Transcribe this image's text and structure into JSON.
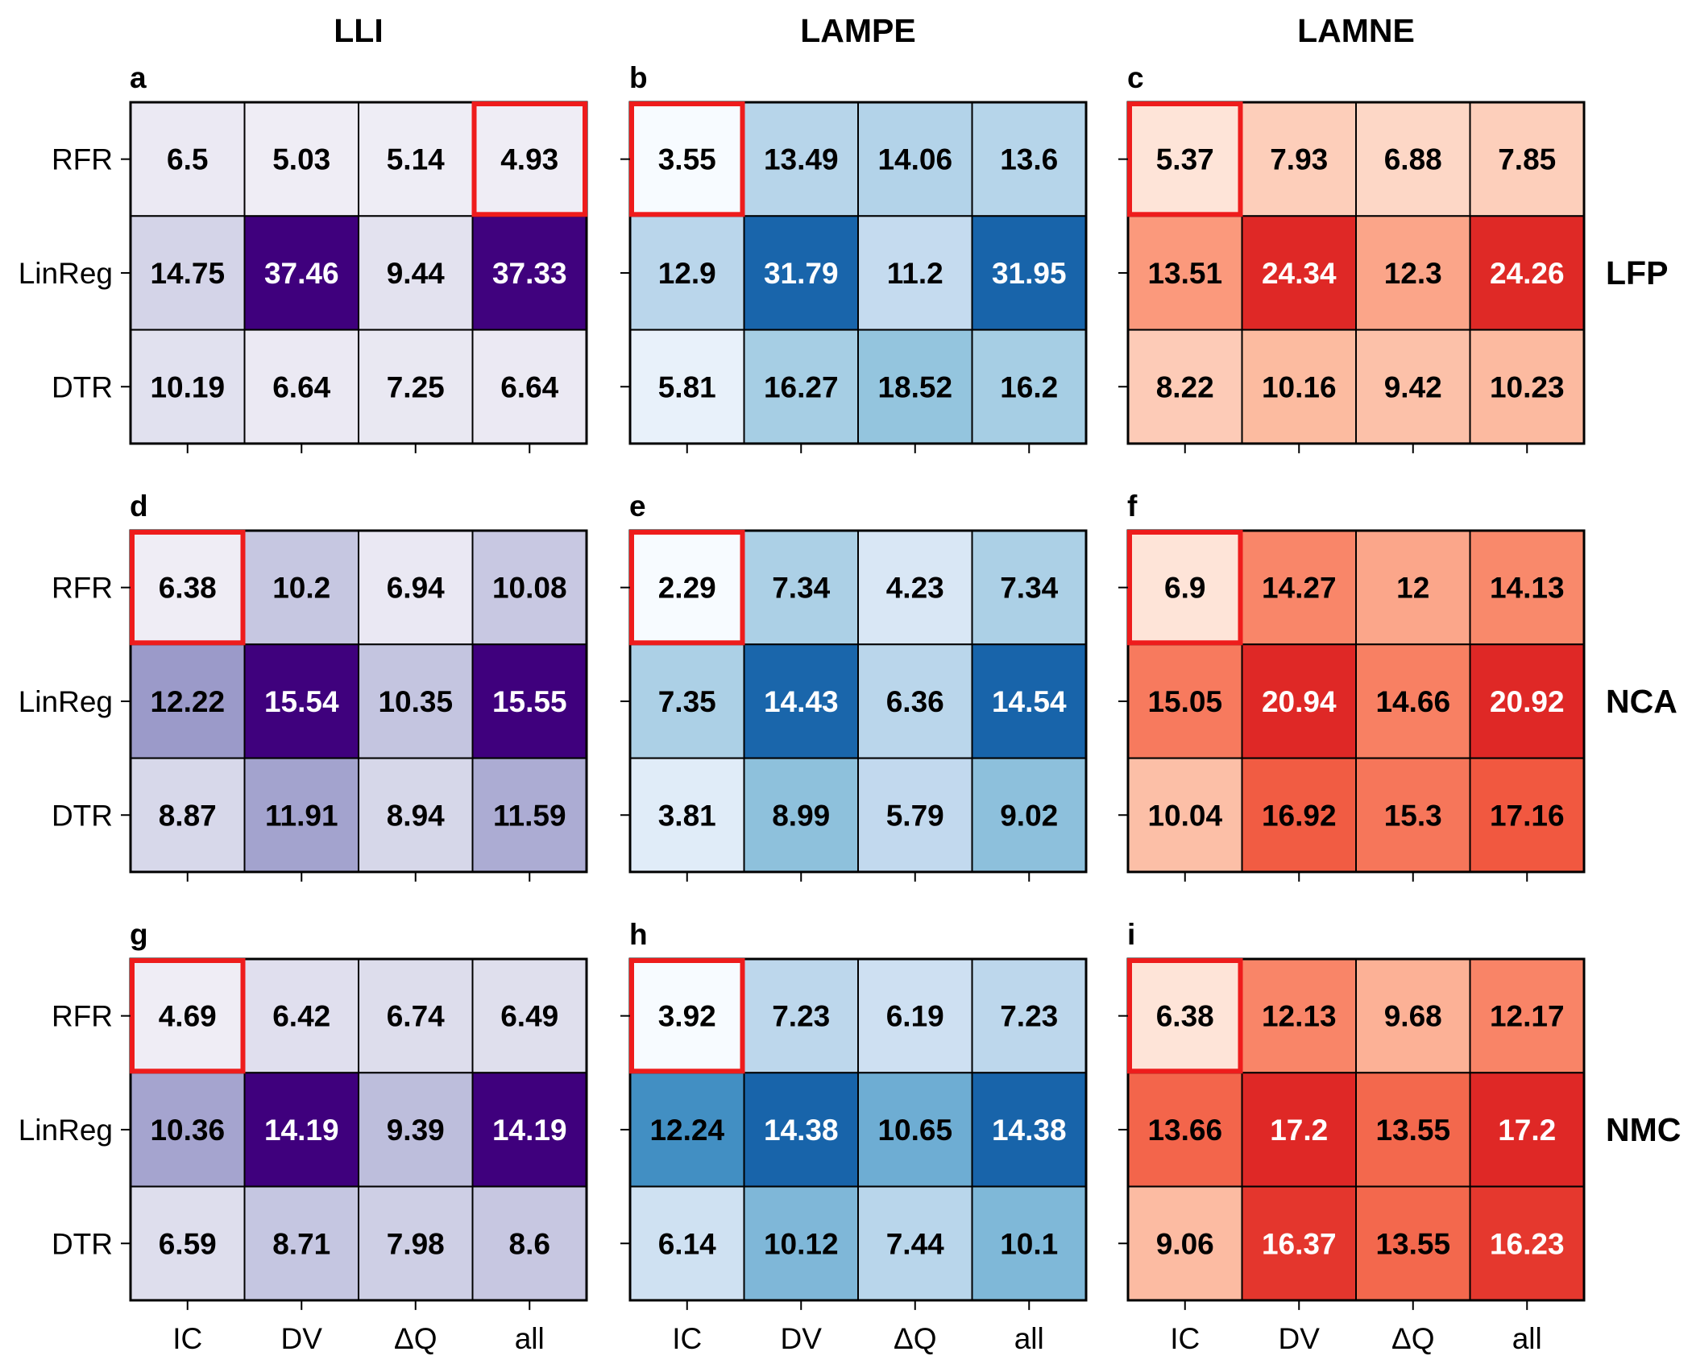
{
  "figure": {
    "column_titles": [
      "LLI",
      "LAMPE",
      "LAMNE"
    ],
    "row_titles": [
      "LFP",
      "NCA",
      "NMC"
    ],
    "colors": {
      "highlight": "#ee1c1c",
      "border": "#000000",
      "dark_text_threshold_note": ""
    }
  },
  "chart_data": [
    {
      "panel": "a",
      "type": "heatmap",
      "colormap": "Purples",
      "column": "LLI",
      "row": "LFP",
      "x": [
        "IC",
        "DV",
        "ΔQ",
        "all"
      ],
      "y": [
        "RFR",
        "LinReg",
        "DTR"
      ],
      "values": [
        [
          6.5,
          5.03,
          5.14,
          4.93
        ],
        [
          14.75,
          37.46,
          9.44,
          37.33
        ],
        [
          10.19,
          6.64,
          7.25,
          6.64
        ]
      ],
      "labels": [
        [
          "6.5",
          "5.03",
          "5.14",
          "4.93"
        ],
        [
          "14.75",
          "37.46",
          "9.44",
          "37.33"
        ],
        [
          "10.19",
          "6.64",
          "7.25",
          "6.64"
        ]
      ],
      "highlight": [
        0,
        3
      ]
    },
    {
      "panel": "b",
      "type": "heatmap",
      "colormap": "Blues",
      "column": "LAMPE",
      "row": "LFP",
      "x": [
        "IC",
        "DV",
        "ΔQ",
        "all"
      ],
      "y": [
        "RFR",
        "LinReg",
        "DTR"
      ],
      "values": [
        [
          3.55,
          13.49,
          14.06,
          13.6
        ],
        [
          12.9,
          31.79,
          11.2,
          31.95
        ],
        [
          5.81,
          16.27,
          18.52,
          16.2
        ]
      ],
      "labels": [
        [
          "3.55",
          "13.49",
          "14.06",
          "13.6"
        ],
        [
          "12.9",
          "31.79",
          "11.2",
          "31.95"
        ],
        [
          "5.81",
          "16.27",
          "18.52",
          "16.2"
        ]
      ],
      "highlight": [
        0,
        0
      ]
    },
    {
      "panel": "c",
      "type": "heatmap",
      "colormap": "Reds",
      "column": "LAMNE",
      "row": "LFP",
      "x": [
        "IC",
        "DV",
        "ΔQ",
        "all"
      ],
      "y": [
        "RFR",
        "LinReg",
        "DTR"
      ],
      "values": [
        [
          5.37,
          7.93,
          6.88,
          7.85
        ],
        [
          13.51,
          24.34,
          12.3,
          24.26
        ],
        [
          8.22,
          10.16,
          9.42,
          10.23
        ]
      ],
      "labels": [
        [
          "5.37",
          "7.93",
          "6.88",
          "7.85"
        ],
        [
          "13.51",
          "24.34",
          "12.3",
          "24.26"
        ],
        [
          "8.22",
          "10.16",
          "9.42",
          "10.23"
        ]
      ],
      "highlight": [
        0,
        0
      ]
    },
    {
      "panel": "d",
      "type": "heatmap",
      "colormap": "Purples",
      "column": "LLI",
      "row": "NCA",
      "x": [
        "IC",
        "DV",
        "ΔQ",
        "all"
      ],
      "y": [
        "RFR",
        "LinReg",
        "DTR"
      ],
      "values": [
        [
          6.38,
          10.2,
          6.94,
          10.08
        ],
        [
          12.22,
          15.54,
          10.35,
          15.55
        ],
        [
          8.87,
          11.91,
          8.94,
          11.59
        ]
      ],
      "labels": [
        [
          "6.38",
          "10.2",
          "6.94",
          "10.08"
        ],
        [
          "12.22",
          "15.54",
          "10.35",
          "15.55"
        ],
        [
          "8.87",
          "11.91",
          "8.94",
          "11.59"
        ]
      ],
      "highlight": [
        0,
        0
      ]
    },
    {
      "panel": "e",
      "type": "heatmap",
      "colormap": "Blues",
      "column": "LAMPE",
      "row": "NCA",
      "x": [
        "IC",
        "DV",
        "ΔQ",
        "all"
      ],
      "y": [
        "RFR",
        "LinReg",
        "DTR"
      ],
      "values": [
        [
          2.29,
          7.34,
          4.23,
          7.34
        ],
        [
          7.35,
          14.43,
          6.36,
          14.54
        ],
        [
          3.81,
          8.99,
          5.79,
          9.02
        ]
      ],
      "labels": [
        [
          "2.29",
          "7.34",
          "4.23",
          "7.34"
        ],
        [
          "7.35",
          "14.43",
          "6.36",
          "14.54"
        ],
        [
          "3.81",
          "8.99",
          "5.79",
          "9.02"
        ]
      ],
      "highlight": [
        0,
        0
      ]
    },
    {
      "panel": "f",
      "type": "heatmap",
      "colormap": "Reds",
      "column": "LAMNE",
      "row": "NCA",
      "x": [
        "IC",
        "DV",
        "ΔQ",
        "all"
      ],
      "y": [
        "RFR",
        "LinReg",
        "DTR"
      ],
      "values": [
        [
          6.9,
          14.27,
          12,
          14.13
        ],
        [
          15.05,
          20.94,
          14.66,
          20.92
        ],
        [
          10.04,
          16.92,
          15.3,
          17.16
        ]
      ],
      "labels": [
        [
          "6.9",
          "14.27",
          "12",
          "14.13"
        ],
        [
          "15.05",
          "20.94",
          "14.66",
          "20.92"
        ],
        [
          "10.04",
          "16.92",
          "15.3",
          "17.16"
        ]
      ],
      "highlight": [
        0,
        0
      ]
    },
    {
      "panel": "g",
      "type": "heatmap",
      "colormap": "Purples",
      "column": "LLI",
      "row": "NMC",
      "x": [
        "IC",
        "DV",
        "ΔQ",
        "all"
      ],
      "y": [
        "RFR",
        "LinReg",
        "DTR"
      ],
      "values": [
        [
          4.69,
          6.42,
          6.74,
          6.49
        ],
        [
          10.36,
          14.19,
          9.39,
          14.19
        ],
        [
          6.59,
          8.71,
          7.98,
          8.6
        ]
      ],
      "labels": [
        [
          "4.69",
          "6.42",
          "6.74",
          "6.49"
        ],
        [
          "10.36",
          "14.19",
          "9.39",
          "14.19"
        ],
        [
          "6.59",
          "8.71",
          "7.98",
          "8.6"
        ]
      ],
      "highlight": [
        0,
        0
      ]
    },
    {
      "panel": "h",
      "type": "heatmap",
      "colormap": "Blues",
      "column": "LAMPE",
      "row": "NMC",
      "x": [
        "IC",
        "DV",
        "ΔQ",
        "all"
      ],
      "y": [
        "RFR",
        "LinReg",
        "DTR"
      ],
      "values": [
        [
          3.92,
          7.23,
          6.19,
          7.23
        ],
        [
          12.24,
          14.38,
          10.65,
          14.38
        ],
        [
          6.14,
          10.12,
          7.44,
          10.1
        ]
      ],
      "labels": [
        [
          "3.92",
          "7.23",
          "6.19",
          "7.23"
        ],
        [
          "12.24",
          "14.38",
          "10.65",
          "14.38"
        ],
        [
          "6.14",
          "10.12",
          "7.44",
          "10.1"
        ]
      ],
      "highlight": [
        0,
        0
      ]
    },
    {
      "panel": "i",
      "type": "heatmap",
      "colormap": "Reds",
      "column": "LAMNE",
      "row": "NMC",
      "x": [
        "IC",
        "DV",
        "ΔQ",
        "all"
      ],
      "y": [
        "RFR",
        "LinReg",
        "DTR"
      ],
      "values": [
        [
          6.38,
          12.13,
          9.68,
          12.17
        ],
        [
          13.66,
          17.2,
          13.55,
          17.2
        ],
        [
          9.06,
          16.37,
          13.55,
          16.23
        ]
      ],
      "labels": [
        [
          "6.38",
          "12.13",
          "9.68",
          "12.17"
        ],
        [
          "13.66",
          "17.2",
          "13.55",
          "17.2"
        ],
        [
          "9.06",
          "16.37",
          "13.55",
          "16.23"
        ]
      ],
      "highlight": [
        0,
        0
      ]
    }
  ]
}
